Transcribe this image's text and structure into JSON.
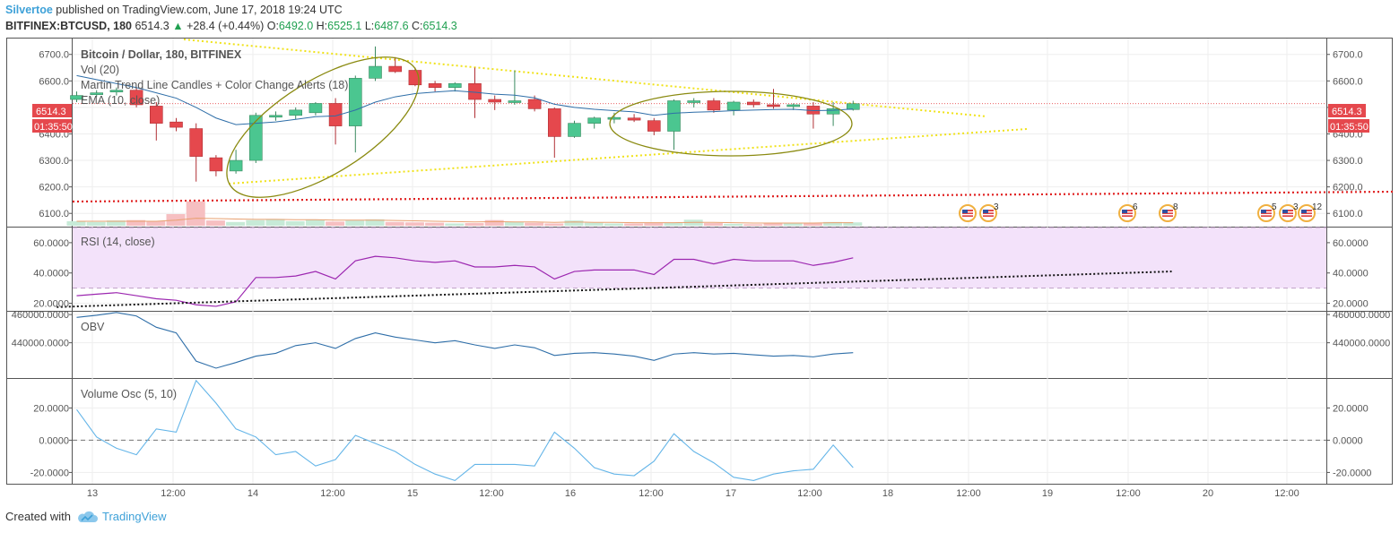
{
  "header": {
    "user": "Silvertoe",
    "published_text": " published on TradingView.com, June 17, 2018 19:24 UTC",
    "symbol": "BITFINEX:BTCUSD, 180",
    "last": "6514.3",
    "change": "+28.4 (+0.44%)",
    "o_label": "O:",
    "o": "6492.0",
    "h_label": "H:",
    "h": "6525.1",
    "l_label": "L:",
    "l": "6487.6",
    "c_label": "C:",
    "c": "6514.3"
  },
  "footer": {
    "created_with": "Created with",
    "brand": "TradingView"
  },
  "colors": {
    "up": "#4bc690",
    "down": "#e5484d",
    "ema": "#2e6ea8",
    "rsi": "#9c27b0",
    "obv": "#2e6ea8",
    "vosc": "#64b5e8",
    "trend": "#f0e21a",
    "ellipse": "#8a8a10",
    "support": "#e02020"
  },
  "chart_data": [
    {
      "type": "candlestick",
      "title": "Bitcoin / Dollar, 180, BITFINEX",
      "indicators": [
        "Vol (20)",
        "Martin Trend Line Candles + Color Change Alerts (18)",
        "EMA (10, close)"
      ],
      "ylim": [
        6050,
        6760
      ],
      "yticks": [
        "6700.0",
        "6600.0",
        "6500.0",
        "6400.0",
        "6300.0",
        "6200.0",
        "6100.0"
      ],
      "ytick_values": [
        6700,
        6600,
        6500,
        6400,
        6300,
        6200,
        6100
      ],
      "last_price_label": "6514.3",
      "countdown_label": "01:35:50",
      "last_price": 6514.3,
      "x_labels": [
        "13",
        "12:00",
        "14",
        "12:00",
        "15",
        "12:00",
        "16",
        "12:00",
        "17",
        "12:00",
        "18",
        "12:00",
        "19",
        "12:00",
        "20",
        "12:00"
      ],
      "candles": [
        {
          "o": 6530,
          "h": 6560,
          "l": 6520,
          "c": 6545
        },
        {
          "o": 6550,
          "h": 6565,
          "l": 6540,
          "c": 6555
        },
        {
          "o": 6560,
          "h": 6575,
          "l": 6545,
          "c": 6565
        },
        {
          "o": 6565,
          "h": 6575,
          "l": 6500,
          "c": 6510
        },
        {
          "o": 6505,
          "h": 6520,
          "l": 6375,
          "c": 6440
        },
        {
          "o": 6445,
          "h": 6460,
          "l": 6410,
          "c": 6425
        },
        {
          "o": 6420,
          "h": 6440,
          "l": 6220,
          "c": 6315
        },
        {
          "o": 6310,
          "h": 6320,
          "l": 6240,
          "c": 6260
        },
        {
          "o": 6260,
          "h": 6340,
          "l": 6250,
          "c": 6300
        },
        {
          "o": 6300,
          "h": 6480,
          "l": 6290,
          "c": 6470
        },
        {
          "o": 6465,
          "h": 6485,
          "l": 6450,
          "c": 6470
        },
        {
          "o": 6470,
          "h": 6500,
          "l": 6455,
          "c": 6490
        },
        {
          "o": 6480,
          "h": 6520,
          "l": 6470,
          "c": 6515
        },
        {
          "o": 6515,
          "h": 6535,
          "l": 6360,
          "c": 6430
        },
        {
          "o": 6430,
          "h": 6620,
          "l": 6330,
          "c": 6610
        },
        {
          "o": 6610,
          "h": 6730,
          "l": 6600,
          "c": 6655
        },
        {
          "o": 6655,
          "h": 6690,
          "l": 6630,
          "c": 6635
        },
        {
          "o": 6640,
          "h": 6650,
          "l": 6580,
          "c": 6585
        },
        {
          "o": 6590,
          "h": 6600,
          "l": 6560,
          "c": 6575
        },
        {
          "o": 6575,
          "h": 6595,
          "l": 6560,
          "c": 6590
        },
        {
          "o": 6590,
          "h": 6650,
          "l": 6460,
          "c": 6530
        },
        {
          "o": 6530,
          "h": 6545,
          "l": 6490,
          "c": 6520
        },
        {
          "o": 6520,
          "h": 6640,
          "l": 6510,
          "c": 6525
        },
        {
          "o": 6530,
          "h": 6545,
          "l": 6485,
          "c": 6495
        },
        {
          "o": 6495,
          "h": 6500,
          "l": 6310,
          "c": 6390
        },
        {
          "o": 6390,
          "h": 6450,
          "l": 6385,
          "c": 6440
        },
        {
          "o": 6440,
          "h": 6465,
          "l": 6420,
          "c": 6460
        },
        {
          "o": 6460,
          "h": 6480,
          "l": 6440,
          "c": 6462
        },
        {
          "o": 6460,
          "h": 6475,
          "l": 6445,
          "c": 6452
        },
        {
          "o": 6450,
          "h": 6460,
          "l": 6395,
          "c": 6410
        },
        {
          "o": 6410,
          "h": 6530,
          "l": 6340,
          "c": 6525
        },
        {
          "o": 6520,
          "h": 6535,
          "l": 6500,
          "c": 6525
        },
        {
          "o": 6525,
          "h": 6535,
          "l": 6480,
          "c": 6490
        },
        {
          "o": 6490,
          "h": 6525,
          "l": 6470,
          "c": 6520
        },
        {
          "o": 6520,
          "h": 6530,
          "l": 6500,
          "c": 6510
        },
        {
          "o": 6510,
          "h": 6570,
          "l": 6495,
          "c": 6505
        },
        {
          "o": 6505,
          "h": 6515,
          "l": 6490,
          "c": 6510
        },
        {
          "o": 6505,
          "h": 6520,
          "l": 6420,
          "c": 6475
        },
        {
          "o": 6475,
          "h": 6520,
          "l": 6430,
          "c": 6495
        },
        {
          "o": 6492,
          "h": 6525,
          "l": 6488,
          "c": 6514
        }
      ],
      "ema": [
        6620,
        6605,
        6590,
        6575,
        6555,
        6535,
        6500,
        6460,
        6435,
        6440,
        6445,
        6455,
        6465,
        6468,
        6490,
        6520,
        6540,
        6552,
        6558,
        6563,
        6557,
        6550,
        6546,
        6536,
        6512,
        6500,
        6493,
        6488,
        6483,
        6470,
        6478,
        6482,
        6484,
        6488,
        6490,
        6492,
        6493,
        6488,
        6489,
        6494
      ],
      "volume": [
        12,
        10,
        14,
        15,
        12,
        31,
        65,
        14,
        10,
        15,
        18,
        12,
        16,
        11,
        14,
        17,
        10,
        9,
        8,
        6,
        7,
        15,
        10,
        8,
        6,
        14,
        8,
        6,
        6,
        7,
        8,
        16,
        7,
        5,
        4,
        7,
        8,
        7,
        10,
        9
      ],
      "volume_up": [
        true,
        true,
        true,
        false,
        false,
        false,
        false,
        false,
        true,
        true,
        true,
        true,
        true,
        false,
        true,
        true,
        false,
        false,
        false,
        true,
        false,
        false,
        true,
        false,
        false,
        true,
        true,
        true,
        false,
        false,
        true,
        true,
        false,
        true,
        false,
        false,
        true,
        false,
        true,
        true
      ],
      "ema_of_volume": [
        12,
        12,
        12,
        12,
        12,
        15,
        20,
        19,
        18,
        17,
        17,
        16,
        16,
        15,
        15,
        15,
        14,
        13,
        12,
        11,
        10,
        11,
        10,
        10,
        9,
        10,
        9,
        9,
        8,
        8,
        8,
        9,
        9,
        8,
        7,
        7,
        7,
        7,
        8,
        8
      ]
    },
    {
      "type": "line",
      "title": "RSI (14, close)",
      "ylim": [
        15,
        70
      ],
      "yticks": [
        "60.0000",
        "40.0000",
        "20.0000"
      ],
      "ytick_values": [
        60,
        40,
        20
      ],
      "band": [
        30,
        70
      ],
      "values": [
        25,
        26,
        27,
        25,
        23,
        22,
        19,
        18,
        21,
        37,
        37,
        38,
        41,
        36,
        48,
        51,
        50,
        48,
        47,
        48,
        44,
        44,
        45,
        44,
        36,
        41,
        42,
        42,
        42,
        39,
        49,
        49,
        46,
        49,
        48,
        48,
        48,
        45,
        47,
        50
      ],
      "trend_line": {
        "x0_index": -1,
        "y0": 17.5,
        "x1_index": 55,
        "y1": 41
      }
    },
    {
      "type": "line",
      "title": "OBV",
      "ylim": [
        415000,
        462000
      ],
      "yticks": [
        "460000.0000",
        "440000.0000"
      ],
      "ytick_values": [
        460000,
        440000
      ],
      "values": [
        458000,
        459500,
        461500,
        459000,
        451000,
        447000,
        427000,
        422000,
        426000,
        430500,
        432500,
        438000,
        440000,
        436000,
        443000,
        447000,
        444000,
        442000,
        440000,
        441500,
        438500,
        436000,
        438500,
        436500,
        431000,
        432500,
        433000,
        432000,
        430500,
        427500,
        432000,
        433000,
        432000,
        432500,
        431500,
        430500,
        431000,
        430000,
        432000,
        433000
      ]
    },
    {
      "type": "line",
      "title": "Volume Osc (5, 10)",
      "ylim": [
        -27,
        38
      ],
      "yticks": [
        "20.0000",
        "0.0000",
        "-20.0000"
      ],
      "ytick_values": [
        20,
        0,
        -20
      ],
      "zero_line": 0,
      "values": [
        19,
        2,
        -5,
        -9,
        7,
        5,
        37,
        23,
        7,
        2,
        -9,
        -7,
        -16,
        -12,
        3,
        -2,
        -7,
        -15,
        -21,
        -25,
        -15,
        -15,
        -15,
        -16,
        5,
        -5,
        -17,
        -21,
        -22,
        -13,
        4,
        -7,
        -14,
        -23,
        -25,
        -21,
        -19,
        -18,
        -3,
        -17
      ]
    }
  ],
  "events": [
    {
      "at": "18 12:00",
      "label": "",
      "count": ""
    },
    {
      "at": "18 12:00",
      "label": "3",
      "count": "3"
    },
    {
      "at": "19 12:00",
      "label": "6",
      "count": "6"
    },
    {
      "at": "19 18:00",
      "label": "8",
      "count": "8"
    },
    {
      "at": "20 06:00",
      "label": "5",
      "count": "5"
    },
    {
      "at": "20 09:00",
      "label": "3",
      "count": "3"
    },
    {
      "at": "20 12:00",
      "label": "12",
      "count": "12"
    }
  ]
}
